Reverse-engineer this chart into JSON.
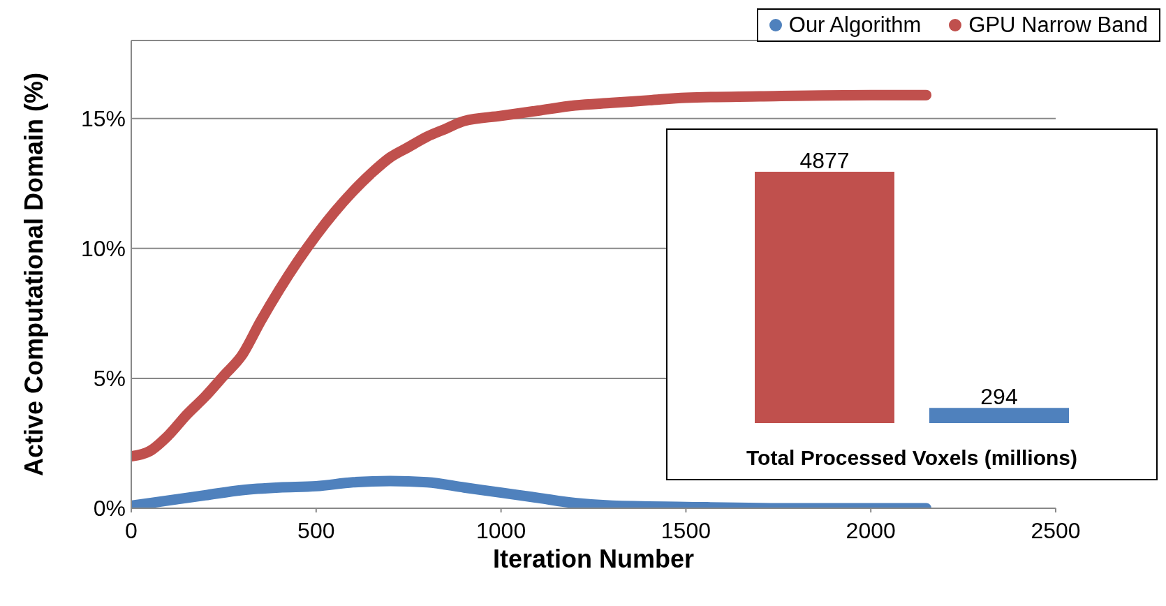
{
  "chart_data": [
    {
      "type": "line",
      "xlabel": "Iteration Number",
      "ylabel": "Active Computational Domain (%)",
      "xlim": [
        0,
        2500
      ],
      "xticks": [
        0,
        500,
        1000,
        1500,
        2000,
        2500
      ],
      "ylim": [
        0,
        18
      ],
      "yticks": [
        {
          "value": 0,
          "label": "0%"
        },
        {
          "value": 5,
          "label": "5%"
        },
        {
          "value": 10,
          "label": "10%"
        },
        {
          "value": 15,
          "label": "15%"
        }
      ],
      "grid": "y",
      "legend": "top right",
      "marker": "none",
      "line_style": "solid",
      "series": [
        {
          "name": "Our Algorithm",
          "color": "#4f81bd",
          "x": [
            0,
            100,
            200,
            300,
            400,
            500,
            600,
            700,
            800,
            900,
            1000,
            1100,
            1200,
            1300,
            1500,
            1800,
            2150
          ],
          "values": [
            0.1,
            0.3,
            0.5,
            0.7,
            0.8,
            0.85,
            1.0,
            1.05,
            1.0,
            0.8,
            0.6,
            0.4,
            0.2,
            0.1,
            0.05,
            0,
            0
          ]
        },
        {
          "name": "GPU Narrow Band",
          "color": "#c0504d",
          "x": [
            0,
            50,
            100,
            150,
            200,
            250,
            300,
            350,
            400,
            450,
            500,
            550,
            600,
            650,
            700,
            750,
            800,
            850,
            900,
            1000,
            1100,
            1200,
            1300,
            1400,
            1500,
            1700,
            2000,
            2150
          ],
          "values": [
            2.0,
            2.2,
            2.8,
            3.6,
            4.3,
            5.1,
            5.9,
            7.2,
            8.4,
            9.5,
            10.5,
            11.4,
            12.2,
            12.9,
            13.5,
            13.9,
            14.3,
            14.6,
            14.9,
            15.1,
            15.3,
            15.5,
            15.6,
            15.7,
            15.8,
            15.85,
            15.9,
            15.9
          ]
        }
      ]
    },
    {
      "type": "bar",
      "xlabel": "Total Processed Voxels (millions)",
      "categories": [
        null,
        null
      ],
      "values": [
        4877,
        294
      ],
      "colors": [
        "#c0504d",
        "#4f81bd"
      ],
      "data_labels": true
    }
  ]
}
